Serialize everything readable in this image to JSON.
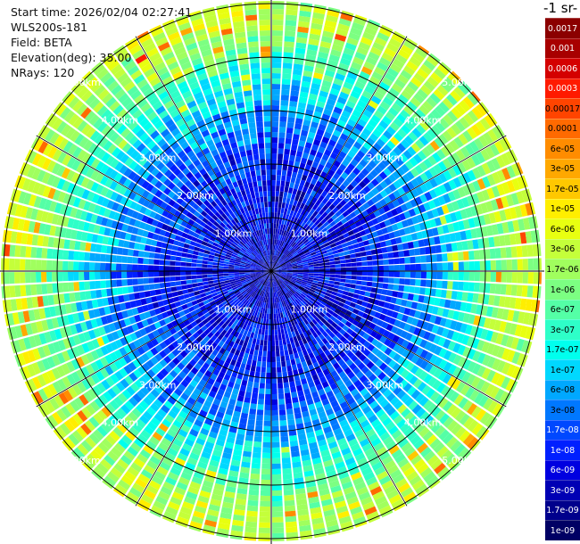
{
  "header": {
    "start_time": "Start time: 2026/02/04 02:27:41",
    "instrument": "WLS200s-181",
    "field": "Field: BETA",
    "elevation": "Elevation(deg): 35.00",
    "nrays": "NRays: 120"
  },
  "colorbar": {
    "title": "-1 sr-",
    "labels": [
      "0.0017",
      "0.001",
      "0.0006",
      "0.0003",
      "0.00017",
      "0.0001",
      "6e-05",
      "3e-05",
      "1.7e-05",
      "1e-05",
      "6e-06",
      "3e-06",
      "1.7e-06",
      "1e-06",
      "6e-07",
      "3e-07",
      "1.7e-07",
      "1e-07",
      "6e-08",
      "3e-08",
      "1.7e-08",
      "1e-08",
      "6e-09",
      "3e-09",
      "1.7e-09",
      "1e-09"
    ],
    "colors": [
      "#8b0000",
      "#a80000",
      "#d40000",
      "#ff1a00",
      "#ff4400",
      "#ff6a00",
      "#ff8c00",
      "#ffa800",
      "#ffc800",
      "#ffee00",
      "#e8ff10",
      "#c4ff3a",
      "#a0ff5e",
      "#7cff82",
      "#54ffa6",
      "#2effc8",
      "#00ffee",
      "#00d8ff",
      "#00a8ff",
      "#0078ff",
      "#0048ff",
      "#0020ff",
      "#0000e0",
      "#0000b4",
      "#00008c",
      "#000064"
    ],
    "text_colors": [
      "#ffffff",
      "#ffffff",
      "#ffffff",
      "#ffffff",
      "#000000",
      "#000000",
      "#000000",
      "#000000",
      "#000000",
      "#000000",
      "#000000",
      "#000000",
      "#000000",
      "#000000",
      "#000000",
      "#000000",
      "#000000",
      "#000000",
      "#000000",
      "#000000",
      "#ffffff",
      "#ffffff",
      "#ffffff",
      "#ffffff",
      "#ffffff",
      "#ffffff"
    ]
  },
  "chart_data": {
    "type": "heatmap",
    "projection": "polar-ppi",
    "nrays": 120,
    "max_range_km": 5.0,
    "range_ring_labels": [
      "1.00km",
      "2.00km",
      "3.00km",
      "4.00km",
      "5.00km"
    ],
    "range_rings_km": [
      1.0,
      2.0,
      3.0,
      4.0,
      5.0
    ],
    "radial_profile": [
      {
        "range_km": 0.0,
        "log10_beta": -8.3
      },
      {
        "range_km": 1.0,
        "log10_beta": -8.1
      },
      {
        "range_km": 2.0,
        "log10_beta": -7.9
      },
      {
        "range_km": 3.0,
        "log10_beta": -7.2
      },
      {
        "range_km": 4.0,
        "log10_beta": -6.2
      },
      {
        "range_km": 4.6,
        "log10_beta": -5.6
      }
    ]
  }
}
